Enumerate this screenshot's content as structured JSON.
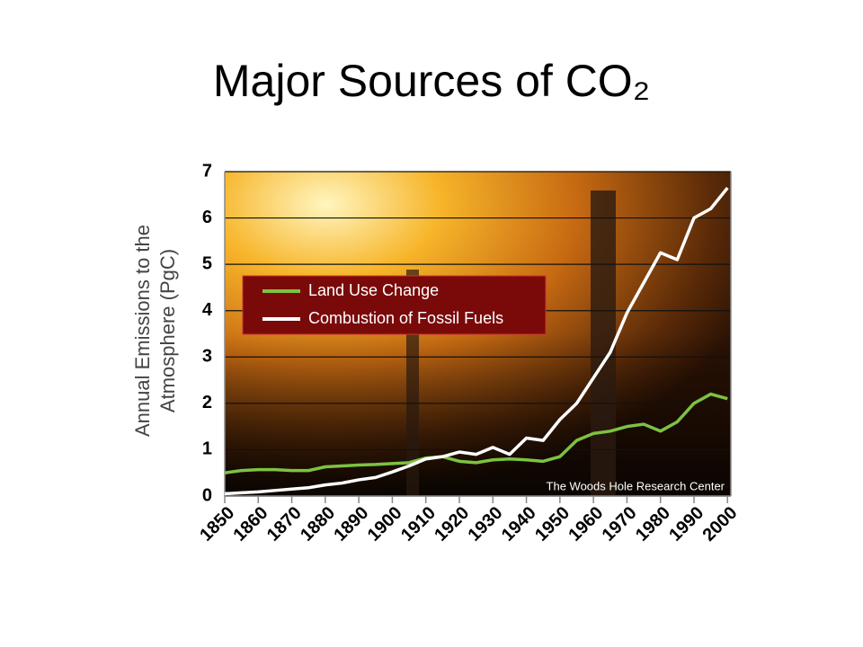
{
  "chart_data": {
    "type": "line",
    "title": "Major Sources of CO₂",
    "ylabel": [
      "Annual Emissions to the",
      "Atmosphere (PgC)"
    ],
    "annotation": "The Woods Hole Research Center",
    "x": [
      1850,
      1855,
      1860,
      1865,
      1870,
      1875,
      1880,
      1885,
      1890,
      1895,
      1900,
      1905,
      1910,
      1915,
      1920,
      1925,
      1930,
      1935,
      1940,
      1945,
      1950,
      1955,
      1960,
      1965,
      1970,
      1975,
      1980,
      1985,
      1990,
      1995,
      2000
    ],
    "series": [
      {
        "name": "Land Use Change",
        "color": "#7dc242",
        "values": [
          0.5,
          0.55,
          0.57,
          0.57,
          0.55,
          0.55,
          0.63,
          0.65,
          0.67,
          0.68,
          0.7,
          0.72,
          0.82,
          0.85,
          0.75,
          0.72,
          0.78,
          0.8,
          0.78,
          0.75,
          0.85,
          1.2,
          1.35,
          1.4,
          1.5,
          1.55,
          1.4,
          1.6,
          2.0,
          2.2,
          2.1
        ]
      },
      {
        "name": "Combustion of Fossil Fuels",
        "color": "#ffffff",
        "values": [
          0.05,
          0.07,
          0.09,
          0.12,
          0.15,
          0.18,
          0.24,
          0.28,
          0.35,
          0.4,
          0.52,
          0.65,
          0.8,
          0.85,
          0.95,
          0.9,
          1.05,
          0.9,
          1.25,
          1.2,
          1.65,
          2.0,
          2.55,
          3.1,
          3.95,
          4.6,
          5.25,
          5.1,
          6.0,
          6.2,
          6.65
        ]
      }
    ],
    "xlim": [
      1850,
      2001
    ],
    "xticks": [
      1850,
      1860,
      1870,
      1880,
      1890,
      1900,
      1910,
      1920,
      1930,
      1940,
      1950,
      1960,
      1970,
      1980,
      1990,
      2000
    ],
    "ylim": [
      0,
      7
    ],
    "yticks": [
      0,
      1,
      2,
      3,
      4,
      5,
      6,
      7
    ],
    "grid": true
  }
}
